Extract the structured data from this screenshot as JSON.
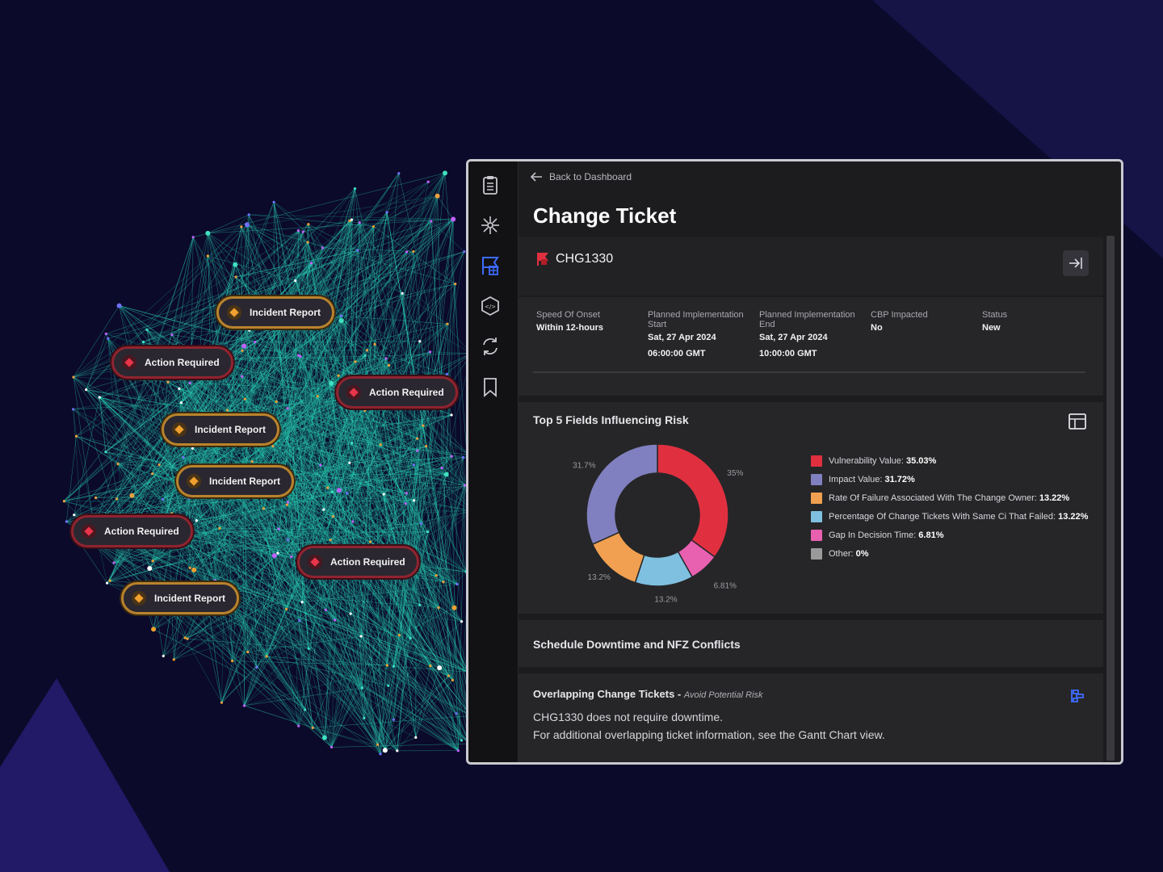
{
  "graph_tags": [
    {
      "type": "incident",
      "label": "Incident Report"
    },
    {
      "type": "action",
      "label": "Action Required"
    },
    {
      "type": "action",
      "label": "Action Required"
    },
    {
      "type": "incident",
      "label": "Incident Report"
    },
    {
      "type": "incident",
      "label": "Incident Report"
    },
    {
      "type": "action",
      "label": "Action Required"
    },
    {
      "type": "action",
      "label": "Action Required"
    },
    {
      "type": "incident",
      "label": "Incident Report"
    }
  ],
  "rail": {
    "icons": [
      "clipboard-icon",
      "network-icon",
      "flag-grid-icon",
      "hexagon-icon",
      "sync-icon",
      "bookmark-icon"
    ],
    "active_color": "#3d6bff"
  },
  "back_link": "Back to Dashboard",
  "page_title": "Change Ticket",
  "ticket": {
    "id": "CHG1330",
    "fields": [
      {
        "label": "Speed Of Onset",
        "value": "Within 12-hours",
        "value2": ""
      },
      {
        "label": "Planned Implementation Start",
        "value": "Sat, 27 Apr 2024",
        "value2": "06:00:00 GMT"
      },
      {
        "label": "Planned Implementation End",
        "value": "Sat, 27 Apr 2024",
        "value2": "10:00:00 GMT"
      },
      {
        "label": "CBP Impacted",
        "value": "No",
        "value2": ""
      },
      {
        "label": "Status",
        "value": "New",
        "value2": ""
      }
    ]
  },
  "risk": {
    "title": "Top 5 Fields Influencing Risk"
  },
  "chart_data": {
    "type": "pie",
    "donut": true,
    "title": "Top 5 Fields Influencing Risk",
    "slices": [
      {
        "name": "Vulnerability Value",
        "value": 35.03,
        "label": "Vulnerability Value:",
        "display": "35.03%",
        "outer_label": "35%",
        "color": "#e03040"
      },
      {
        "name": "Gap In Decision Time",
        "value": 6.81,
        "label": "Gap In Decision Time:",
        "display": "6.81%",
        "outer_label": "6.81%",
        "color": "#e860b0"
      },
      {
        "name": "Percentage Of Change Tickets With Same Ci That Failed",
        "value": 13.22,
        "label": "Percentage Of Change Tickets With Same Ci That Failed:",
        "display": "13.22%",
        "outer_label": "13.2%",
        "color": "#7fc0e0"
      },
      {
        "name": "Rate Of Failure Associated With The Change Owner",
        "value": 13.22,
        "label": "Rate Of Failure Associated With The Change Owner:",
        "display": "13.22%",
        "outer_label": "13.2%",
        "color": "#f0a050"
      },
      {
        "name": "Impact Value",
        "value": 31.72,
        "label": "Impact Value:",
        "display": "31.72%",
        "outer_label": "31.7%",
        "color": "#8080c0"
      },
      {
        "name": "Other",
        "value": 0,
        "label": "Other:",
        "display": "0%",
        "outer_label": "0%",
        "color": "#9a9a9a"
      }
    ],
    "legend_order": [
      0,
      4,
      3,
      2,
      1,
      5
    ]
  },
  "schedule": {
    "title": "Schedule Downtime and NFZ Conflicts"
  },
  "overlap": {
    "title": "Overlapping Change Tickets - ",
    "subtitle": "Avoid Potential Risk",
    "line1": "CHG1330 does not require downtime.",
    "line2": "For additional overlapping ticket information, see the Gantt Chart view."
  }
}
